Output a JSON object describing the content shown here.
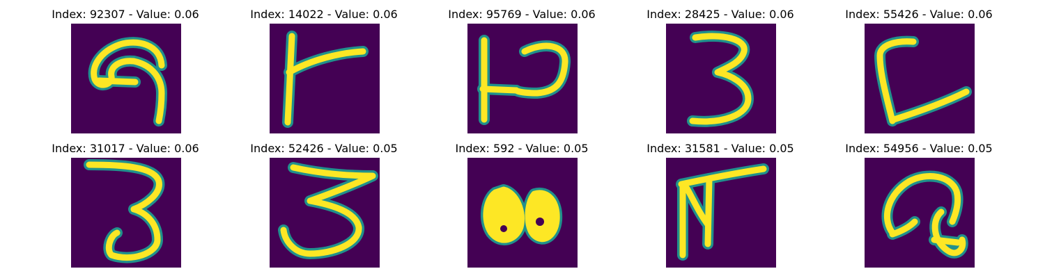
{
  "figure": {
    "panels": [
      {
        "title": "Index: 92307 - Value: 0.06",
        "glyph": "hook-nine"
      },
      {
        "title": "Index: 14022 - Value: 0.06",
        "glyph": "stroke-T"
      },
      {
        "title": "Index: 95769 - Value: 0.06",
        "glyph": "p-loop"
      },
      {
        "title": "Index: 28425 - Value: 0.06",
        "glyph": "three"
      },
      {
        "title": "Index: 55426 - Value: 0.06",
        "glyph": "open-L"
      },
      {
        "title": "Index: 31017 - Value: 0.06",
        "glyph": "three-tall"
      },
      {
        "title": "Index: 52426 - Value: 0.05",
        "glyph": "three-wide"
      },
      {
        "title": "Index: 592 - Value: 0.05",
        "glyph": "blob-double"
      },
      {
        "title": "Index: 31581 - Value: 0.05",
        "glyph": "hooked-gamma"
      },
      {
        "title": "Index: 54956 - Value: 0.05",
        "glyph": "loop-curl"
      }
    ],
    "colors": {
      "background": "#440154",
      "edge": "#21918c",
      "stroke": "#fde725"
    }
  }
}
